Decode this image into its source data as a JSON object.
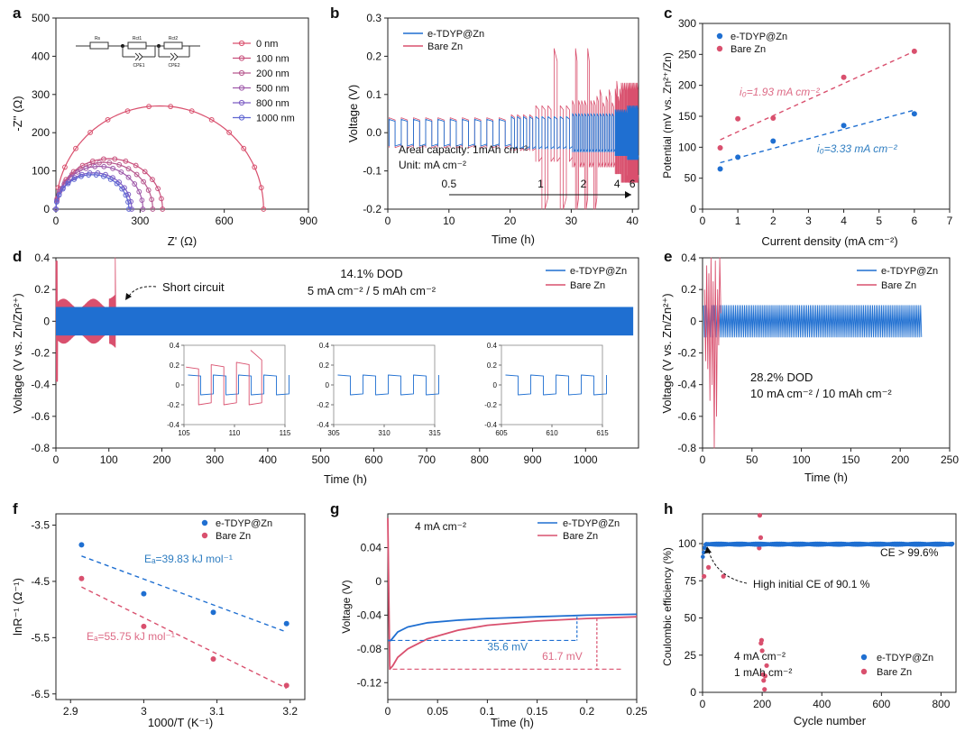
{
  "colors": {
    "blue": "#1f6fd1",
    "pink": "#d9506e",
    "blueText": "#2e7dc1",
    "pinkText": "#dd6b86",
    "axis": "#222222",
    "nyquist": [
      "#d9506e",
      "#c8507c",
      "#b7598f",
      "#9f5aaa",
      "#7c5cc4",
      "#5f66d2"
    ]
  },
  "chart_data": [
    {
      "panel": "a",
      "type": "line",
      "xlabel": "Z' (Ω)",
      "ylabel": "-Z'' (Ω)",
      "xlim": [
        0,
        900
      ],
      "ylim": [
        0,
        500
      ],
      "xticks": [
        "0",
        "300",
        "600",
        "900"
      ],
      "yticks": [
        "0",
        "100",
        "200",
        "300",
        "400",
        "500"
      ],
      "circuit_labels": [
        "Rs",
        "Rct1",
        "Rct2",
        "CPE1",
        "CPE2"
      ],
      "series": [
        {
          "name": "0 nm",
          "x_start": 0,
          "x_end": 740,
          "peak": 270
        },
        {
          "name": "100 nm",
          "x_start": 0,
          "x_end": 380,
          "peak": 132
        },
        {
          "name": "200 nm",
          "x_start": 0,
          "x_end": 345,
          "peak": 122
        },
        {
          "name": "500 nm",
          "x_start": 0,
          "x_end": 310,
          "peak": 112
        },
        {
          "name": "800 nm",
          "x_start": 0,
          "x_end": 270,
          "peak": 95
        },
        {
          "name": "1000 nm",
          "x_start": 0,
          "x_end": 260,
          "peak": 90
        }
      ]
    },
    {
      "panel": "b",
      "type": "line",
      "xlabel": "Time (h)",
      "ylabel": "Voltage (V)",
      "xlim": [
        0,
        41
      ],
      "ylim": [
        -0.2,
        0.3
      ],
      "xticks": [
        "0",
        "10",
        "20",
        "30",
        "40"
      ],
      "yticks": [
        "-0.2",
        "-0.1",
        "0.0",
        "0.1",
        "0.2",
        "0.3"
      ],
      "legend": [
        "e-TDYP@Zn",
        "Bare Zn"
      ],
      "annotations": [
        "Areal capacity: 1mAh cm⁻²",
        "Unit: mA cm⁻²"
      ],
      "rate_labels": [
        {
          "t": 10,
          "label": "0.5"
        },
        {
          "t": 25,
          "label": "1"
        },
        {
          "t": 32,
          "label": "2"
        },
        {
          "t": 37.5,
          "label": "4"
        },
        {
          "t": 40,
          "label": "6"
        }
      ]
    },
    {
      "panel": "c",
      "type": "scatter",
      "xlabel": "Current density (mA cm⁻²)",
      "ylabel": "Potential (mV vs. Zn²⁺/Zn)",
      "xlim": [
        0,
        7
      ],
      "ylim": [
        0,
        300
      ],
      "xticks": [
        "0",
        "1",
        "2",
        "3",
        "4",
        "5",
        "6",
        "7"
      ],
      "yticks": [
        "0",
        "50",
        "100",
        "150",
        "200",
        "250",
        "300"
      ],
      "series": [
        {
          "name": "e-TDYP@Zn",
          "x": [
            0.5,
            1,
            2,
            4,
            6
          ],
          "y": [
            65,
            84,
            110,
            135,
            154
          ],
          "fit": [
            [
              0.5,
              75
            ],
            [
              6,
              160
            ]
          ],
          "label": "i₀=3.33 mA cm⁻²"
        },
        {
          "name": "Bare Zn",
          "x": [
            0.5,
            1,
            2,
            4,
            6
          ],
          "y": [
            99,
            146,
            147,
            213,
            255
          ],
          "fit": [
            [
              0.5,
              112
            ],
            [
              6,
              255
            ]
          ],
          "label": "i₀=1.93 mA cm⁻²"
        }
      ]
    },
    {
      "panel": "d",
      "type": "line",
      "xlabel": "Time (h)",
      "ylabel": "Voltage (V vs. Zn/Zn²⁺)",
      "xlim": [
        0,
        1100
      ],
      "ylim": [
        -0.8,
        0.4
      ],
      "xticks": [
        "0",
        "100",
        "200",
        "300",
        "400",
        "500",
        "600",
        "700",
        "800",
        "900",
        "1000"
      ],
      "yticks": [
        "-0.8",
        "-0.6",
        "-0.4",
        "-0.2",
        "0",
        "0.2",
        "0.4"
      ],
      "legend": [
        "e-TDYP@Zn",
        "Bare Zn"
      ],
      "annotations": [
        "14.1% DOD",
        "5 mA cm⁻² / 5 mAh cm⁻²",
        "Short circuit"
      ],
      "insets": [
        {
          "xticks": [
            "105",
            "110",
            "115"
          ],
          "yticks": [
            "0.4",
            "0.2",
            "0",
            "-0.2",
            "-0.4"
          ],
          "bare": true
        },
        {
          "xticks": [
            "305",
            "310",
            "315"
          ],
          "yticks": [
            "0.4",
            "0.2",
            "0",
            "-0.2",
            "-0.4"
          ],
          "bare": false
        },
        {
          "xticks": [
            "605",
            "610",
            "615"
          ],
          "yticks": [
            "0.4",
            "0.2",
            "0",
            "-0.2",
            "-0.4"
          ],
          "bare": false
        }
      ]
    },
    {
      "panel": "e",
      "type": "line",
      "xlabel": "Time (h)",
      "ylabel": "Voltage (V vs. Zn/Zn²⁺)",
      "xlim": [
        0,
        250
      ],
      "ylim": [
        -0.8,
        0.4
      ],
      "xticks": [
        "0",
        "50",
        "100",
        "150",
        "200",
        "250"
      ],
      "yticks": [
        "-0.8",
        "-0.6",
        "-0.4",
        "-0.2",
        "0",
        "0.2",
        "0.4"
      ],
      "legend": [
        "e-TDYP@Zn",
        "Bare Zn"
      ],
      "annotations": [
        "28.2% DOD",
        "10 mA cm⁻² / 10 mAh cm⁻²"
      ]
    },
    {
      "panel": "f",
      "type": "scatter",
      "xlabel": "1000/T (K⁻¹)",
      "ylabel": "lnR⁻¹ (Ω⁻¹)",
      "xlim": [
        2.88,
        3.22
      ],
      "ylim": [
        -6.6,
        -3.3
      ],
      "xticks": [
        "2.9",
        "3",
        "3.1",
        "3.2"
      ],
      "yticks": [
        "-3.5",
        "-4.5",
        "-5.5",
        "-6.5"
      ],
      "series": [
        {
          "name": "e-TDYP@Zn",
          "x": [
            2.915,
            3.0,
            3.095,
            3.195
          ],
          "y": [
            -3.85,
            -4.72,
            -5.05,
            -5.25
          ],
          "fit": [
            [
              2.915,
              -4.05
            ],
            [
              3.195,
              -5.4
            ]
          ],
          "label": "Eₐ=39.83 kJ mol⁻¹"
        },
        {
          "name": "Bare Zn",
          "x": [
            2.915,
            3.0,
            3.095,
            3.195
          ],
          "y": [
            -4.45,
            -5.3,
            -5.88,
            -6.35
          ],
          "fit": [
            [
              2.915,
              -4.6
            ],
            [
              3.195,
              -6.4
            ]
          ],
          "label": "Eₐ=55.75 kJ mol⁻¹"
        }
      ]
    },
    {
      "panel": "g",
      "type": "line",
      "xlabel": "Time (h)",
      "ylabel": "Voltage (V)",
      "xlim": [
        0,
        0.25
      ],
      "ylim": [
        -0.14,
        0.08
      ],
      "xticks": [
        "0",
        "0.05",
        "0.1",
        "0.15",
        "0.2",
        "0.25"
      ],
      "yticks": [
        "0.04",
        "0",
        "-0.04",
        "-0.08",
        "-0.12"
      ],
      "legend": [
        "e-TDYP@Zn",
        "Bare Zn"
      ],
      "annotations": [
        "4 mA cm⁻²",
        "35.6 mV",
        "61.7 mV"
      ],
      "series": [
        {
          "name": "e-TDYP@Zn",
          "x": [
            0,
            0.003,
            0.01,
            0.02,
            0.04,
            0.07,
            0.1,
            0.15,
            0.2,
            0.25
          ],
          "y": [
            -0.07,
            -0.07,
            -0.06,
            -0.054,
            -0.049,
            -0.046,
            -0.044,
            -0.042,
            -0.04,
            -0.039
          ]
        },
        {
          "name": "Bare Zn",
          "x": [
            0,
            0.002,
            0.005,
            0.01,
            0.02,
            0.04,
            0.07,
            0.1,
            0.15,
            0.2,
            0.25
          ],
          "y": [
            0.075,
            -0.104,
            -0.1,
            -0.09,
            -0.08,
            -0.068,
            -0.058,
            -0.052,
            -0.047,
            -0.044,
            -0.042
          ]
        }
      ]
    },
    {
      "panel": "h",
      "type": "scatter",
      "xlabel": "Cycle number",
      "ylabel": "Coulombic efficiency (%)",
      "xlim": [
        0,
        850
      ],
      "ylim": [
        0,
        120
      ],
      "xticks": [
        "0",
        "200",
        "400",
        "600",
        "800"
      ],
      "yticks": [
        "0",
        "25",
        "50",
        "75",
        "100"
      ],
      "legend": [
        "e-TDYP@Zn",
        "Bare Zn"
      ],
      "annotations": [
        "CE > 99.6%",
        "High initial CE of 90.1 %",
        "4 mA cm⁻²",
        "1 mAh cm⁻²"
      ],
      "series": [
        {
          "name": "e-TDYP@Zn",
          "initial_ce": 90.1,
          "plateau": 99.6
        },
        {
          "name": "Bare Zn",
          "x": [
            5,
            20,
            70,
            190,
            192,
            195,
            196,
            198,
            200,
            203,
            205,
            208,
            210,
            215
          ],
          "y": [
            78,
            84,
            78,
            97,
            119,
            104,
            33,
            35,
            28,
            12,
            8,
            2,
            11,
            18
          ]
        }
      ]
    }
  ]
}
